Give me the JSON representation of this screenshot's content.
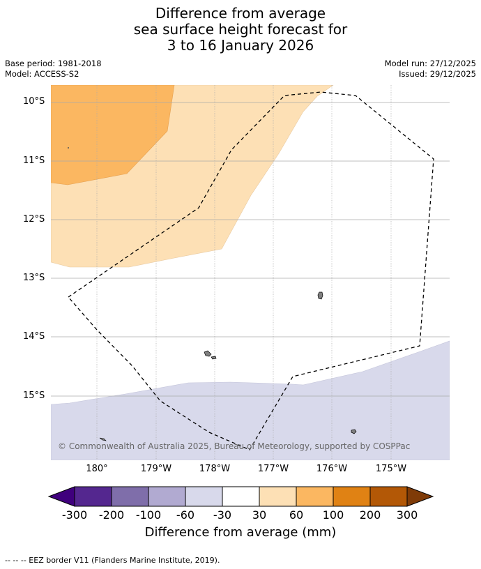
{
  "title": {
    "line1": "Difference from average",
    "line2": "sea surface height forecast for",
    "line3": "3 to 16 January 2026"
  },
  "meta": {
    "base_period": "Base period: 1981-2018",
    "model": "Model: ACCESS-S2",
    "model_run": "Model run: 27/12/2025",
    "issued": "Issued: 29/12/2025"
  },
  "map": {
    "lat_labels": [
      "10°S",
      "11°S",
      "12°S",
      "13°S",
      "14°S",
      "15°S"
    ],
    "lon_labels": [
      "180°",
      "179°W",
      "178°W",
      "177°W",
      "176°W",
      "175°W"
    ],
    "copyright": "© Commonwealth of Australia 2025, Bureau of Meteorology, supported by COSPPac",
    "layers": [
      {
        "name": "anomaly 30 to 60 mm",
        "color": "#fde0b5"
      },
      {
        "name": "anomaly 60 to 100 mm",
        "color": "#fbb761"
      },
      {
        "name": "anomaly -60 to -30 mm",
        "color": "#d8d9eb"
      },
      {
        "name": "EEZ border",
        "color": "#000000"
      },
      {
        "name": "land",
        "color": "#808080"
      }
    ]
  },
  "colorbar": {
    "title": "Difference from average (mm)",
    "ticks": [
      "-300",
      "-200",
      "-100",
      "-60",
      "-30",
      "30",
      "60",
      "100",
      "200",
      "300"
    ],
    "colors": [
      "#3f007d",
      "#54278f",
      "#7f6eaa",
      "#b1aad1",
      "#d8d9eb",
      "#ffffff",
      "#fde0b5",
      "#fbb761",
      "#e08214",
      "#b35806",
      "#7f3b08"
    ]
  },
  "footnote": "--  --  -- EEZ border V11 (Flanders Marine Institute, 2019)."
}
